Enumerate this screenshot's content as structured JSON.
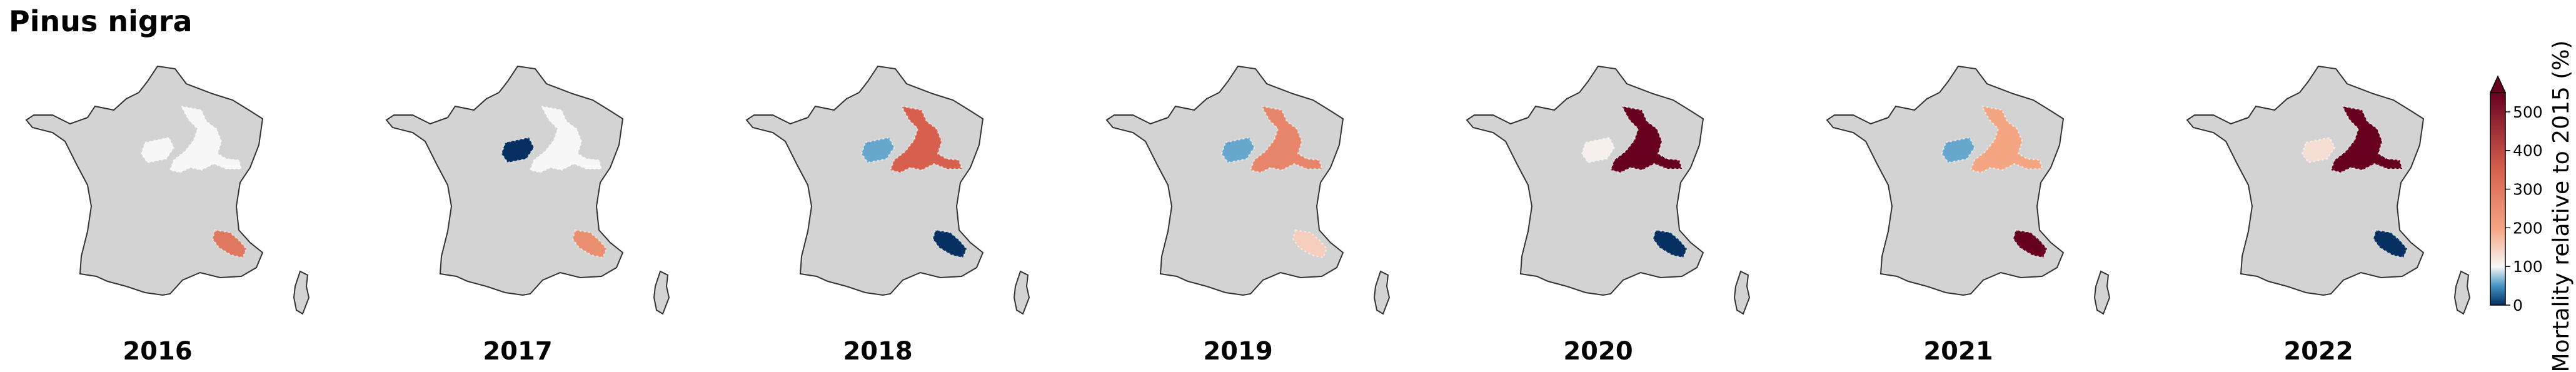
{
  "title": "Pinus nigra",
  "colorbar": {
    "label": "Mortality relative to 2015 (%)",
    "ticks": [
      "500",
      "400",
      "300",
      "200",
      "100",
      "0"
    ],
    "scale": {
      "max": 550,
      "extend": "max"
    },
    "colors": {
      "0": "#053061",
      "50": "#4393c3",
      "100": "#f7f7f7",
      "200": "#f4a582",
      "350": "#d6604d",
      "550": "#67001f"
    }
  },
  "maps": [
    {
      "year": "2016",
      "regions": {
        "west": 100,
        "northeast": 100,
        "southeast": 300
      }
    },
    {
      "year": "2017",
      "regions": {
        "west": 0,
        "northeast": 100,
        "southeast": 250
      }
    },
    {
      "year": "2018",
      "regions": {
        "west": 60,
        "northeast": 350,
        "southeast": 0
      }
    },
    {
      "year": "2019",
      "regions": {
        "west": 60,
        "northeast": 270,
        "southeast": 150
      }
    },
    {
      "year": "2020",
      "regions": {
        "west": 110,
        "northeast": 550,
        "southeast": 0
      }
    },
    {
      "year": "2021",
      "regions": {
        "west": 60,
        "northeast": 200,
        "southeast": 550
      }
    },
    {
      "year": "2022",
      "regions": {
        "west": 130,
        "northeast": 550,
        "southeast": 0
      }
    }
  ]
}
